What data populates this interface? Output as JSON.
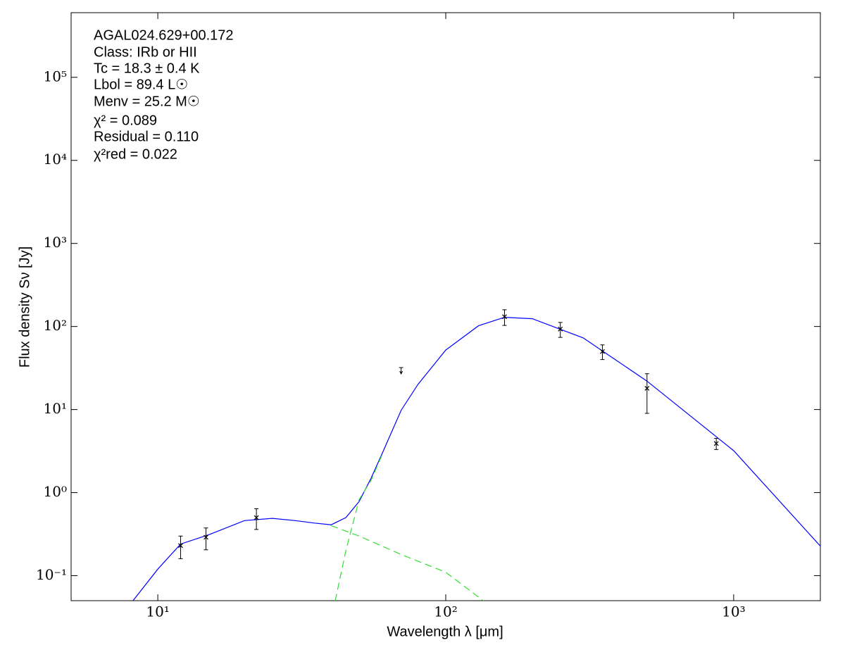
{
  "chart_data": {
    "type": "sed",
    "annotations": [
      "AGAL024.629+00.172",
      "Class: IRb or HII",
      "Tc = 18.3 ± 0.4 K",
      "Lbol = 89.4 L☉",
      "Menv = 25.2 M☉",
      "χ² = 0.089",
      "Residual = 0.110",
      "χ²red = 0.022"
    ],
    "xlabel": "Wavelength λ [μm]",
    "ylabel": "Flux density Sν [Jy]",
    "xscale": "log",
    "yscale": "log",
    "xlim": [
      5,
      2000
    ],
    "ylim": [
      0.05,
      600000
    ],
    "xticks": [
      {
        "value": 10,
        "label": "10¹"
      },
      {
        "value": 100,
        "label": "10²"
      },
      {
        "value": 1000,
        "label": "10³"
      }
    ],
    "yticks": [
      {
        "value": 0.1,
        "label": "10⁻¹"
      },
      {
        "value": 1,
        "label": "10⁰"
      },
      {
        "value": 10,
        "label": "10¹"
      },
      {
        "value": 100,
        "label": "10²"
      },
      {
        "value": 1000,
        "label": "10³"
      },
      {
        "value": 10000,
        "label": "10⁴"
      },
      {
        "value": 100000,
        "label": "10⁵"
      }
    ],
    "series": [
      {
        "style": "errorbar",
        "color": "#000000",
        "x": [
          12,
          14.7,
          22,
          160,
          250,
          350,
          500,
          870
        ],
        "values": [
          0.23,
          0.29,
          0.5,
          131,
          93,
          50,
          18,
          3.9
        ],
        "errors": [
          0.07,
          0.085,
          0.14,
          28,
          19,
          10,
          9,
          0.6
        ]
      },
      {
        "style": "upper-limit",
        "color": "#000000",
        "x": [
          70
        ],
        "values": [
          32
        ]
      },
      {
        "style": "solid",
        "color": "#0000ff",
        "x": [
          8.2,
          10,
          12,
          15,
          20,
          25,
          30,
          35,
          40,
          45,
          50,
          55,
          60,
          70,
          80,
          100,
          130,
          160,
          200,
          300,
          500,
          1000,
          2000
        ],
        "values": [
          0.05,
          0.12,
          0.24,
          0.31,
          0.46,
          0.49,
          0.46,
          0.43,
          0.41,
          0.5,
          0.78,
          1.48,
          2.9,
          9.8,
          20,
          52,
          102,
          129,
          124,
          73,
          22,
          3.2,
          0.227
        ]
      },
      {
        "style": "dashed",
        "color": "#33dd33",
        "x": [
          40,
          50,
          70,
          100,
          135
        ],
        "values": [
          0.4,
          0.3,
          0.18,
          0.11,
          0.05
        ]
      },
      {
        "style": "dashed",
        "color": "#33dd33",
        "x": [
          41.3,
          45,
          50,
          55,
          60
        ],
        "values": [
          0.05,
          0.2,
          0.82,
          1.4,
          2.8
        ]
      }
    ]
  }
}
